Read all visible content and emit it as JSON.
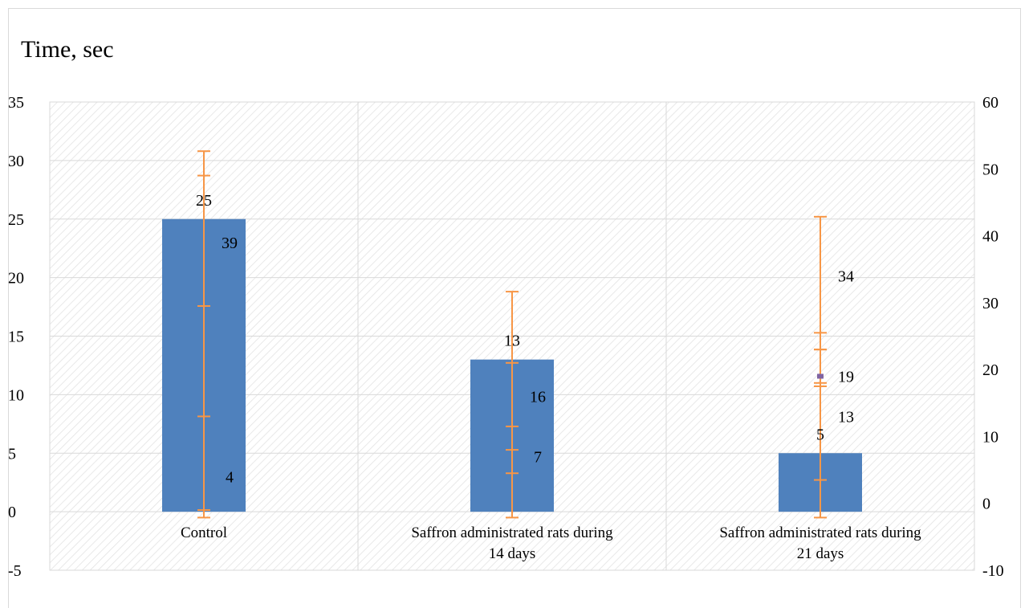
{
  "chart_data": {
    "type": "bar",
    "title": "Time, sec",
    "categories": [
      [
        "Control"
      ],
      [
        "Saffron administrated rats during",
        "14 days"
      ],
      [
        "Saffron administrated rats during",
        "21 days"
      ]
    ],
    "primary_axis": {
      "ylim": [
        -5,
        35
      ],
      "ticks": [
        35,
        30,
        25,
        20,
        15,
        10,
        5,
        0,
        -5
      ]
    },
    "secondary_axis": {
      "ylim": [
        -10,
        60
      ],
      "ticks": [
        60,
        50,
        40,
        30,
        20,
        10,
        0,
        -10
      ]
    },
    "grid": true,
    "bar_color": "#4f81bd",
    "error_color": "#f79646",
    "marker_color": "#8064a2",
    "series": [
      {
        "axis": "primary",
        "values": [
          25,
          13,
          5
        ],
        "labels": [
          "25",
          "13",
          "5"
        ],
        "errors": [
          [
            -0.5,
            30.8
          ],
          [
            -0.5,
            18.8
          ],
          [
            -0.5,
            25.2
          ]
        ]
      },
      {
        "axis": "secondary",
        "values": [
          39,
          16,
          19
        ],
        "labels": [
          "39",
          "16",
          "19"
        ],
        "errors": [
          [
            29.5,
            49
          ],
          [
            11.5,
            21
          ],
          [
            17.5,
            23
          ]
        ]
      },
      {
        "axis": "secondary",
        "values": [
          4,
          7,
          13
        ],
        "labels": [
          "4",
          "7",
          "13"
        ],
        "errors": [
          [
            -1,
            13
          ],
          [
            4.5,
            8
          ],
          [
            3.5,
            18
          ]
        ]
      },
      {
        "axis": "secondary",
        "values": [
          null,
          null,
          34
        ],
        "labels": [
          "",
          "",
          "34"
        ],
        "errors": [
          null,
          null,
          [
            23,
            25.5
          ]
        ]
      }
    ]
  }
}
